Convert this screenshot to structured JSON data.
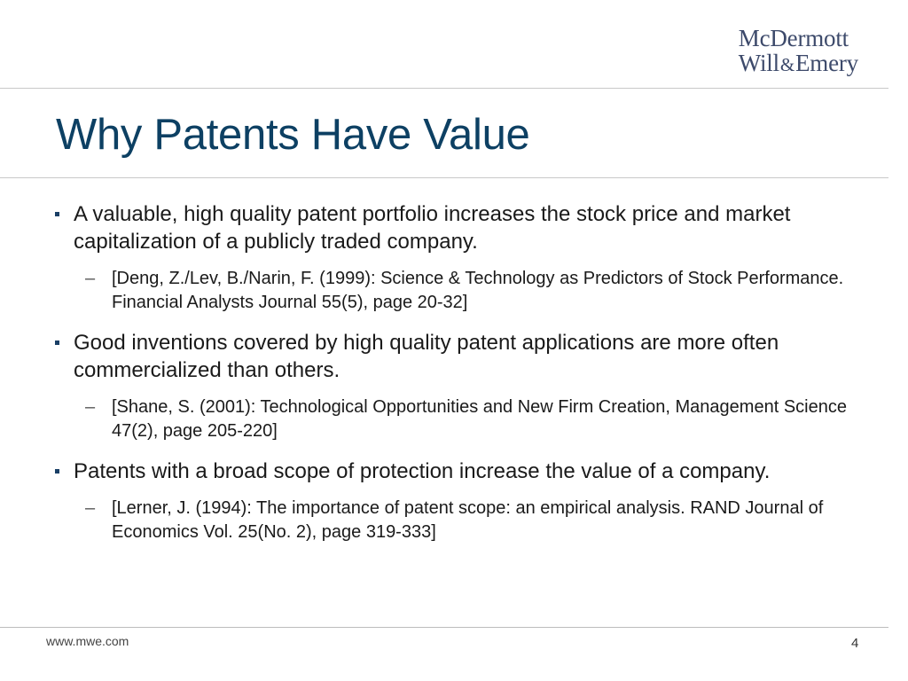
{
  "logo": {
    "line1": "McDermott",
    "line2_left": "Will",
    "line2_amp": "&",
    "line2_right": "Emery"
  },
  "title": "Why Patents Have Value",
  "bullets": [
    {
      "text": "A valuable, high quality patent portfolio increases the stock price and market capitalization of a publicly traded company.",
      "sub": "[Deng, Z./Lev, B./Narin, F. (1999): Science & Technology as Predictors of Stock Performance. Financial Analysts Journal 55(5), page 20-32]"
    },
    {
      "text": "Good inventions covered by high quality patent applications are more often commercialized than others.",
      "sub": "[Shane, S. (2001): Technological Opportunities and New Firm Creation, Management Science 47(2), page 205-220]"
    },
    {
      "text": "Patents with a broad scope of protection increase the value of a company.",
      "sub": "[Lerner, J. (1994): The importance of patent scope: an empirical analysis. RAND Journal of Economics Vol. 25(No. 2), page 319-333]"
    }
  ],
  "markers": {
    "bullet_icon": "square-bullet-icon",
    "sub_icon": "dash",
    "sub_glyph": "–"
  },
  "footer": {
    "url": "www.mwe.com",
    "page_number": "4"
  },
  "colors": {
    "title": "#0d4063",
    "logo": "#3d4a6b",
    "rule": "#c8c8c8"
  }
}
